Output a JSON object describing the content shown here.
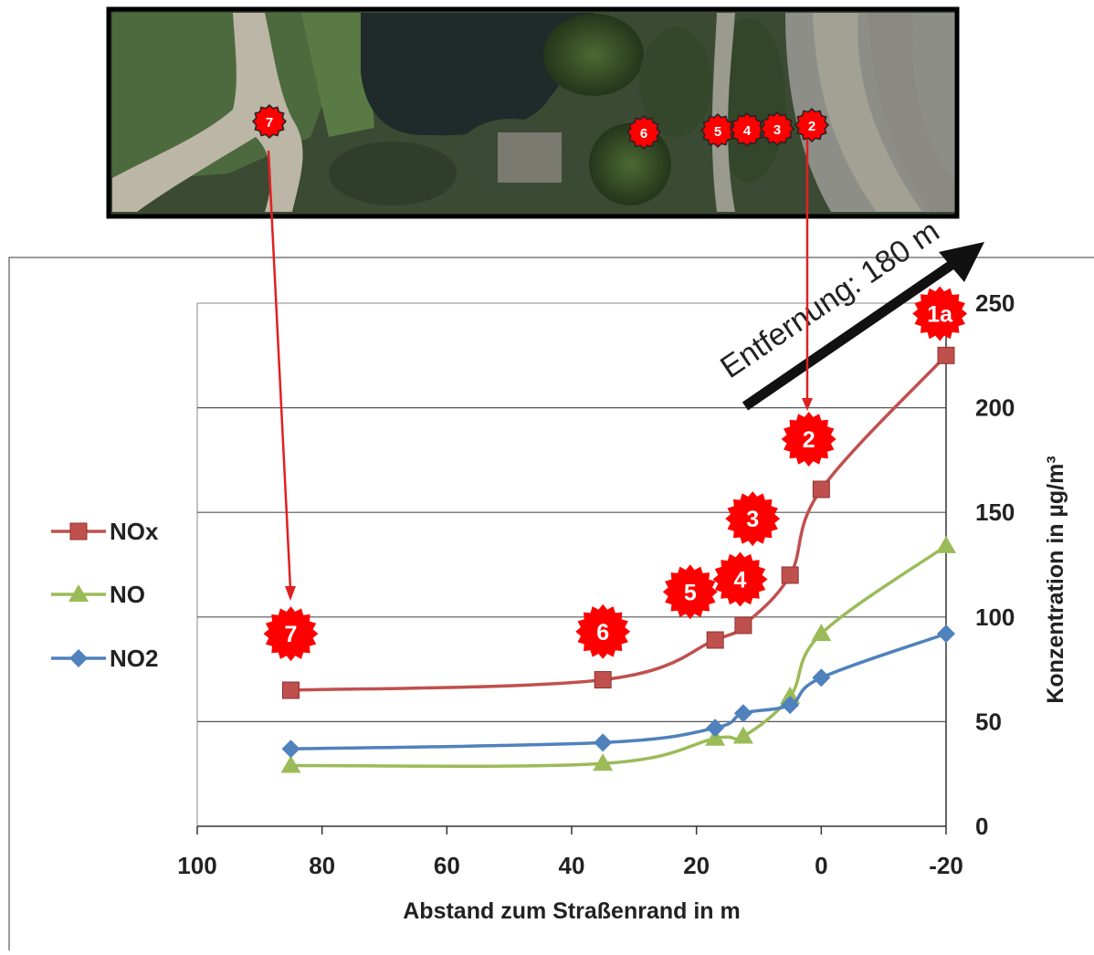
{
  "chart_data": {
    "type": "line",
    "title": "",
    "xlabel": "Abstand zum Straßenrand in m",
    "ylabel": "Konzentration in µg/m³",
    "xlim": [
      100,
      -20
    ],
    "ylim": [
      0,
      250
    ],
    "x_ticks": [
      "100",
      "80",
      "60",
      "40",
      "20",
      "0",
      "-20"
    ],
    "y_ticks": [
      "0",
      "50",
      "100",
      "150",
      "200",
      "250"
    ],
    "grid": "horizontal",
    "legend_position": "left",
    "series": [
      {
        "name": "NOx",
        "color": "#c0504d",
        "marker": "square",
        "points": [
          [
            85,
            65
          ],
          [
            35,
            70
          ],
          [
            17,
            89
          ],
          [
            12.5,
            96
          ],
          [
            5,
            120
          ],
          [
            0,
            161
          ],
          [
            -20,
            225
          ]
        ]
      },
      {
        "name": "NO",
        "color": "#9bbb59",
        "marker": "triangle",
        "points": [
          [
            85,
            29
          ],
          [
            35,
            30
          ],
          [
            17,
            42
          ],
          [
            12.5,
            43
          ],
          [
            5,
            62
          ],
          [
            0,
            92
          ],
          [
            -20,
            134
          ]
        ]
      },
      {
        "name": "NO2",
        "color": "#4f81bd",
        "marker": "diamond",
        "points": [
          [
            85,
            37
          ],
          [
            35,
            40
          ],
          [
            17,
            47
          ],
          [
            12.5,
            54
          ],
          [
            5,
            58
          ],
          [
            0,
            71
          ],
          [
            -20,
            92
          ]
        ]
      }
    ],
    "annotations": {
      "distance_label": "Entfernung: 180 m",
      "chart_badges": [
        {
          "label": "7",
          "x": 85,
          "y": 92
        },
        {
          "label": "6",
          "x": 35,
          "y": 93
        },
        {
          "label": "5",
          "x": 21,
          "y": 112
        },
        {
          "label": "4",
          "x": 13,
          "y": 118
        },
        {
          "label": "3",
          "x": 11,
          "y": 147
        },
        {
          "label": "2",
          "x": 2,
          "y": 185
        },
        {
          "label": "1a",
          "x": -19,
          "y": 245
        }
      ]
    }
  },
  "aerial_photo": {
    "badges": [
      "7",
      "6",
      "5",
      "4",
      "3",
      "2"
    ]
  }
}
